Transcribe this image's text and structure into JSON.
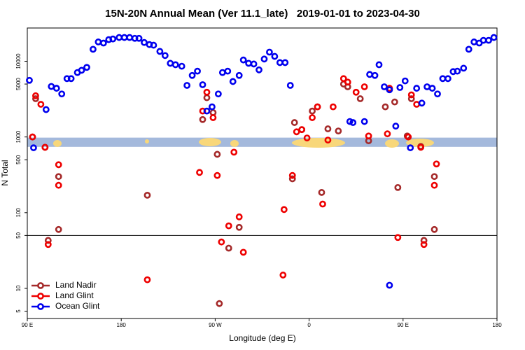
{
  "chart_data": {
    "type": "scatter",
    "title": "15N-20N Annual Mean (Ver 11.1_late)   2019-01-01 to 2023-04-30",
    "x_label": "Longitude (deg E)",
    "y_label": "N Total",
    "xlim": [
      90,
      540
    ],
    "xticks": [
      {
        "value": 90,
        "label": "90 E"
      },
      180,
      {
        "value": 270,
        "label": "90 W"
      },
      {
        "value": 360,
        "label": "0"
      },
      {
        "value": 450,
        "label": "90 E"
      },
      {
        "value": 540,
        "label": "180"
      }
    ],
    "ylim": [
      4,
      27500
    ],
    "log_y": true,
    "yticks": [
      5,
      10,
      50,
      100,
      500,
      1000,
      5000,
      10000
    ],
    "hline": 50,
    "band_range": [
      740,
      980
    ],
    "band_color": "#a4b9dc",
    "legend": "bottom-left",
    "series": [
      {
        "name": "Land Nadir",
        "color": "#a52a2a",
        "x": [
          95,
          98,
          107,
          120,
          120,
          110,
          205,
          258,
          262,
          268,
          272,
          274,
          283,
          293,
          346,
          344,
          353,
          363,
          368,
          372,
          378,
          388,
          393,
          397,
          409,
          417,
          433,
          442,
          445,
          454,
          458,
          467,
          470,
          480,
          480
        ],
        "values": [
          1000,
          3200,
          730,
          300,
          60,
          43,
          170,
          1700,
          3300,
          2100,
          590,
          6.3,
          34,
          64,
          1550,
          280,
          1250,
          2200,
          2500,
          185,
          1280,
          1200,
          5000,
          4600,
          3200,
          890,
          2500,
          2900,
          215,
          1030,
          3200,
          750,
          43,
          300,
          60
        ]
      },
      {
        "name": "Land Glint",
        "color": "#ee0000",
        "x": [
          95,
          98,
          103,
          107,
          110,
          120,
          120,
          205,
          255,
          258,
          262,
          268,
          272,
          276,
          283,
          288,
          293,
          297,
          335,
          336,
          344,
          348,
          353,
          358,
          363,
          368,
          373,
          378,
          383,
          393,
          397,
          405,
          413,
          417,
          435,
          437,
          445,
          455,
          458,
          463,
          467,
          470,
          480,
          482
        ],
        "values": [
          1000,
          3500,
          2700,
          730,
          38,
          430,
          230,
          13,
          340,
          2200,
          3900,
          1800,
          310,
          41,
          67,
          630,
          88,
          30,
          15,
          110,
          310,
          1170,
          1250,
          970,
          1800,
          2500,
          130,
          910,
          2500,
          5900,
          5300,
          3900,
          4600,
          1030,
          1100,
          4400,
          47,
          1000,
          3600,
          2700,
          730,
          38,
          230,
          440
        ]
      },
      {
        "name": "Ocean Glint",
        "color": "#0000ee",
        "x": [
          92,
          96,
          108,
          113,
          118,
          123,
          128,
          132,
          138,
          142,
          147,
          153,
          158,
          163,
          168,
          172,
          178,
          183,
          188,
          193,
          197,
          202,
          207,
          211,
          217,
          222,
          227,
          232,
          238,
          243,
          248,
          253,
          258,
          262,
          267,
          273,
          277,
          282,
          287,
          293,
          297,
          302,
          307,
          312,
          317,
          322,
          327,
          332,
          337,
          342,
          399,
          402,
          413,
          418,
          423,
          427,
          432,
          437,
          443,
          447,
          452,
          457,
          463,
          468,
          473,
          478,
          483,
          488,
          493,
          498,
          502,
          508,
          513,
          518,
          523,
          527,
          532,
          537,
          437
        ],
        "values": [
          5600,
          720,
          2300,
          4650,
          4400,
          3700,
          5900,
          5900,
          7100,
          7600,
          8300,
          14400,
          18000,
          17400,
          19300,
          19700,
          20600,
          20600,
          20600,
          20100,
          20100,
          17700,
          16600,
          16300,
          13500,
          11900,
          9400,
          9000,
          8600,
          4800,
          6500,
          7400,
          4900,
          2200,
          2500,
          3700,
          7100,
          7400,
          5400,
          6500,
          10400,
          9400,
          9200,
          7700,
          10700,
          13200,
          11600,
          9600,
          9600,
          4800,
          1600,
          1550,
          1600,
          6700,
          6500,
          9000,
          4600,
          4200,
          1390,
          4500,
          5500,
          720,
          4400,
          2800,
          4600,
          4400,
          3700,
          5900,
          5900,
          7300,
          7400,
          8100,
          14400,
          18000,
          17400,
          18900,
          18900,
          20600,
          11
        ]
      }
    ]
  }
}
